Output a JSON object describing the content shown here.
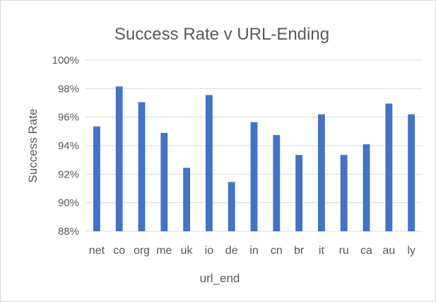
{
  "chart_data": {
    "type": "bar",
    "title": "Success Rate v URL-Ending",
    "xlabel": "url_end",
    "ylabel": "Success Rate",
    "categories": [
      "net",
      "co",
      "org",
      "me",
      "uk",
      "io",
      "de",
      "in",
      "cn",
      "br",
      "it",
      "ru",
      "ca",
      "au",
      "ly"
    ],
    "values": [
      95.35,
      98.15,
      97.05,
      94.9,
      92.45,
      97.55,
      91.45,
      95.65,
      94.75,
      93.35,
      96.2,
      93.35,
      94.1,
      96.95,
      96.2
    ],
    "ylim": [
      88,
      100
    ],
    "yticks": [
      "88%",
      "90%",
      "92%",
      "94%",
      "96%",
      "98%",
      "100%"
    ],
    "grid": true,
    "legend": "none",
    "colors": {
      "bar": "#4472c4",
      "grid": "#d9d9d9",
      "text": "#595959",
      "frame": "#d9d9d9"
    }
  }
}
